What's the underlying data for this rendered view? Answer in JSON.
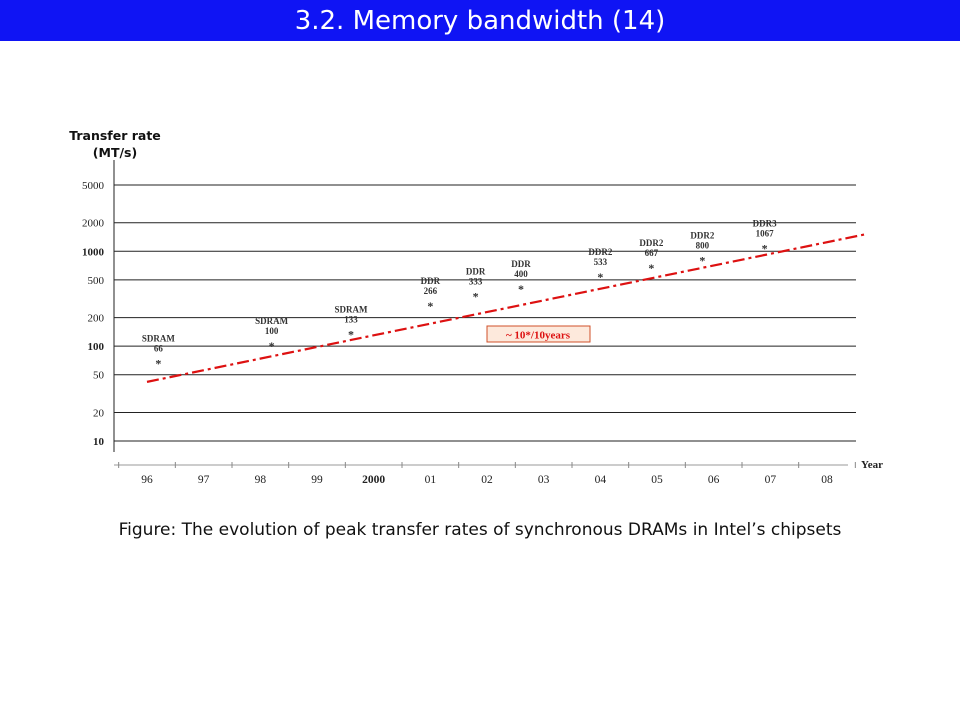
{
  "slide": {
    "title": "3.2.  Memory bandwidth (14)",
    "caption": "Figure: The evolution of peak transfer rates of synchronous DRAMs in Intel’s chipsets",
    "title_bar_color": "#0f14f4"
  },
  "chart_data": {
    "type": "scatter",
    "title": "",
    "ylabel": "Transfer rate (MT/s)",
    "ylabel_lines": [
      "Transfer rate",
      "(MT/s)"
    ],
    "xlabel": "Year",
    "y_scale": "log",
    "ylim": [
      10,
      5000
    ],
    "grid": true,
    "y_ticks": [
      {
        "value": 10,
        "label": "10",
        "bold": true
      },
      {
        "value": 20,
        "label": "20",
        "bold": false
      },
      {
        "value": 50,
        "label": "50",
        "bold": false
      },
      {
        "value": 100,
        "label": "100",
        "bold": true
      },
      {
        "value": 200,
        "label": "200",
        "bold": false
      },
      {
        "value": 500,
        "label": "500",
        "bold": false
      },
      {
        "value": 1000,
        "label": "1000",
        "bold": true
      },
      {
        "value": 2000,
        "label": "2000",
        "bold": false
      },
      {
        "value": 5000,
        "label": "5000",
        "bold": false
      }
    ],
    "x_ticks": [
      {
        "year": 1996,
        "label": "96",
        "bold": false
      },
      {
        "year": 1997,
        "label": "97",
        "bold": false
      },
      {
        "year": 1998,
        "label": "98",
        "bold": false
      },
      {
        "year": 1999,
        "label": "99",
        "bold": false
      },
      {
        "year": 2000,
        "label": "2000",
        "bold": true
      },
      {
        "year": 2001,
        "label": "01",
        "bold": false
      },
      {
        "year": 2002,
        "label": "02",
        "bold": false
      },
      {
        "year": 2003,
        "label": "03",
        "bold": false
      },
      {
        "year": 2004,
        "label": "04",
        "bold": false
      },
      {
        "year": 2005,
        "label": "05",
        "bold": false
      },
      {
        "year": 2006,
        "label": "06",
        "bold": false
      },
      {
        "year": 2007,
        "label": "07",
        "bold": false
      },
      {
        "year": 2008,
        "label": "08",
        "bold": false
      }
    ],
    "points": [
      {
        "type": "SDRAM",
        "rate": "66",
        "year": 1996.2,
        "value": 66
      },
      {
        "type": "SDRAM",
        "rate": "100",
        "year": 1998.2,
        "value": 100
      },
      {
        "type": "SDRAM",
        "rate": "133",
        "year": 1999.6,
        "value": 133
      },
      {
        "type": "DDR",
        "rate": "266",
        "year": 2001.0,
        "value": 266
      },
      {
        "type": "DDR",
        "rate": "333",
        "year": 2001.8,
        "value": 333
      },
      {
        "type": "DDR",
        "rate": "400",
        "year": 2002.6,
        "value": 400
      },
      {
        "type": "DDR2",
        "rate": "533",
        "year": 2004.0,
        "value": 533
      },
      {
        "type": "DDR2",
        "rate": "667",
        "year": 2004.9,
        "value": 667
      },
      {
        "type": "DDR2",
        "rate": "800",
        "year": 2005.8,
        "value": 800
      },
      {
        "type": "DDR3",
        "rate": "1067",
        "year": 2006.9,
        "value": 1067
      }
    ],
    "trend": {
      "from": {
        "year": 1996.0,
        "value": 42
      },
      "to": {
        "year": 2008.7,
        "value": 1520
      },
      "label": "~ 10*/10years",
      "color": "#dd1111"
    },
    "point_marker": "*",
    "colors": {
      "trend": "#dd1111",
      "label_box_fill": "#fde9dc",
      "label_box_border": "#d0502a"
    }
  }
}
